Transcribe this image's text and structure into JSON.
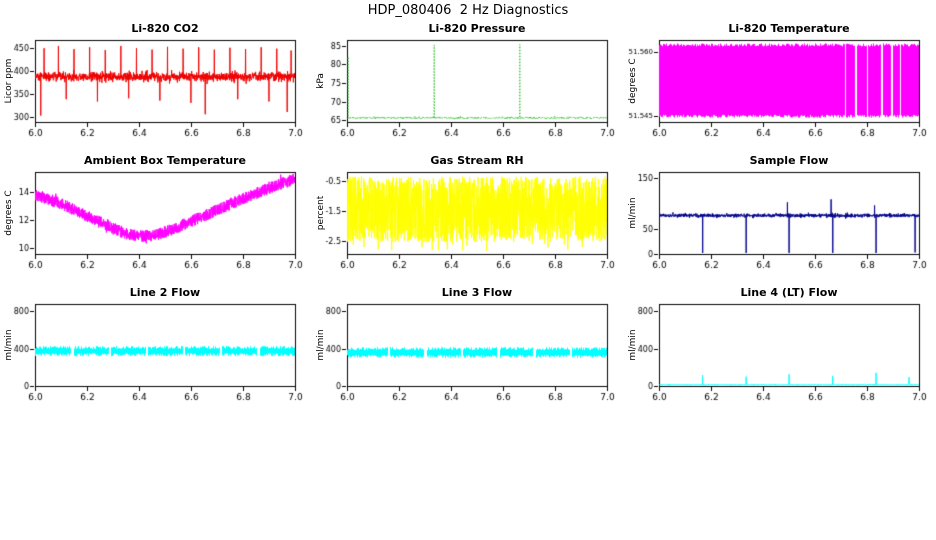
{
  "page_title": "HDP_080406  2 Hz Diagnostics",
  "chart_data": [
    {
      "type": "line",
      "title": "Li-820 CO2",
      "ylabel": "Licor ppm",
      "xlim": [
        6.0,
        7.0
      ],
      "ylim": [
        288,
        468
      ],
      "xticks": [
        "6.0",
        "6.2",
        "6.4",
        "6.6",
        "6.8",
        "7.0"
      ],
      "yticks": [
        "300",
        "350",
        "400",
        "450"
      ],
      "color": "#ee0000",
      "series": {
        "kind": "noisy_line",
        "baseline": 387,
        "noise_sd": 5,
        "n": 1400,
        "spikes": [
          [
            6.022,
            302
          ],
          [
            6.035,
            450
          ],
          [
            6.09,
            455
          ],
          [
            6.12,
            338
          ],
          [
            6.15,
            448
          ],
          [
            6.21,
            452
          ],
          [
            6.24,
            333
          ],
          [
            6.27,
            446
          ],
          [
            6.33,
            455
          ],
          [
            6.36,
            340
          ],
          [
            6.39,
            450
          ],
          [
            6.45,
            447
          ],
          [
            6.48,
            335
          ],
          [
            6.51,
            453
          ],
          [
            6.57,
            449
          ],
          [
            6.6,
            330
          ],
          [
            6.63,
            452
          ],
          [
            6.655,
            305
          ],
          [
            6.69,
            447
          ],
          [
            6.75,
            451
          ],
          [
            6.78,
            338
          ],
          [
            6.81,
            448
          ],
          [
            6.87,
            452
          ],
          [
            6.9,
            333
          ],
          [
            6.93,
            449
          ],
          [
            6.97,
            310
          ],
          [
            6.985,
            445
          ]
        ]
      }
    },
    {
      "type": "line",
      "title": "Li-820 Pressure",
      "ylabel": "kPa",
      "xlim": [
        6.0,
        7.0
      ],
      "ylim": [
        64.5,
        86.5
      ],
      "xticks": [
        "6.0",
        "6.2",
        "6.4",
        "6.6",
        "6.8",
        "7.0"
      ],
      "yticks": [
        "65",
        "70",
        "75",
        "80",
        "85"
      ],
      "color": "#00b000",
      "series": {
        "kind": "noisy_line",
        "baseline": 65.6,
        "noise_sd": 0.12,
        "n": 1200,
        "dash": [
          1,
          2
        ],
        "spikes": [
          [
            6.004,
            82
          ],
          [
            6.335,
            85.2
          ],
          [
            6.665,
            85.3
          ]
        ]
      }
    },
    {
      "type": "line",
      "title": "Li-820 Temperature",
      "ylabel": "degrees C",
      "xlim": [
        6.0,
        7.0
      ],
      "ylim": [
        51.5435,
        51.5628
      ],
      "xticks": [
        "6.0",
        "6.2",
        "6.4",
        "6.6",
        "6.8",
        "7.0"
      ],
      "yticks": [
        "51.545",
        "51.560"
      ],
      "ytick_font": 7,
      "color": "#ff00ff",
      "series": {
        "kind": "band_fill",
        "ymin": 51.5445,
        "ymax": 51.562,
        "jitter": 3,
        "gaps": [
          [
            6.712,
            6.719
          ],
          [
            6.753,
            6.758
          ],
          [
            6.797,
            6.803
          ],
          [
            6.853,
            6.858
          ],
          [
            6.892,
            6.897
          ],
          [
            6.924,
            6.928
          ]
        ]
      }
    },
    {
      "type": "line",
      "title": "Ambient Box Temperature",
      "ylabel": "degrees C",
      "xlim": [
        6.0,
        7.0
      ],
      "ylim": [
        9.6,
        15.4
      ],
      "xticks": [
        "6.0",
        "6.2",
        "6.4",
        "6.6",
        "6.8",
        "7.0"
      ],
      "yticks": [
        "10",
        "12",
        "14"
      ],
      "color": "#ff00ff",
      "series": {
        "kind": "curve_band",
        "half_width": 0.42,
        "n": 1600,
        "points": [
          [
            6.0,
            13.8
          ],
          [
            6.05,
            13.5
          ],
          [
            6.1,
            13.15
          ],
          [
            6.15,
            12.75
          ],
          [
            6.2,
            12.3
          ],
          [
            6.25,
            11.85
          ],
          [
            6.3,
            11.4
          ],
          [
            6.35,
            11.05
          ],
          [
            6.4,
            10.85
          ],
          [
            6.45,
            10.9
          ],
          [
            6.5,
            11.15
          ],
          [
            6.55,
            11.5
          ],
          [
            6.6,
            11.9
          ],
          [
            6.65,
            12.3
          ],
          [
            6.7,
            12.7
          ],
          [
            6.75,
            13.1
          ],
          [
            6.8,
            13.5
          ],
          [
            6.85,
            13.9
          ],
          [
            6.9,
            14.25
          ],
          [
            6.95,
            14.6
          ],
          [
            7.0,
            14.9
          ]
        ]
      }
    },
    {
      "type": "line",
      "title": "Gas Stream RH",
      "ylabel": "percent",
      "xlim": [
        6.0,
        7.0
      ],
      "ylim": [
        -2.95,
        -0.2
      ],
      "xticks": [
        "6.0",
        "6.2",
        "6.4",
        "6.6",
        "6.8",
        "7.0"
      ],
      "yticks": [
        "-2.5",
        "-1.5",
        "-0.5"
      ],
      "color": "#ffff00",
      "series": {
        "kind": "uniform_noise",
        "ymin": -2.55,
        "ymax": -0.35,
        "n": 1600,
        "outlier_p": 0.012,
        "outlier_extra": 0.3
      }
    },
    {
      "type": "line",
      "title": "Sample Flow",
      "ylabel": "ml/min",
      "xlim": [
        6.0,
        7.0
      ],
      "ylim": [
        0,
        162
      ],
      "xticks": [
        "6.0",
        "6.2",
        "6.4",
        "6.6",
        "6.8",
        "7.0"
      ],
      "yticks": [
        "0",
        "50",
        "150"
      ],
      "color": "#00008b",
      "series": {
        "kind": "noisy_line",
        "baseline": 76,
        "noise_sd": 1.8,
        "n": 1400,
        "spikes": [
          [
            6.168,
            2
          ],
          [
            6.335,
            2
          ],
          [
            6.494,
            102
          ],
          [
            6.5,
            2
          ],
          [
            6.662,
            108
          ],
          [
            6.668,
            2
          ],
          [
            6.829,
            96
          ],
          [
            6.835,
            2
          ],
          [
            6.985,
            3
          ]
        ]
      }
    },
    {
      "type": "line",
      "title": "Line 2 Flow",
      "ylabel": "ml/min",
      "xlim": [
        6.0,
        7.0
      ],
      "ylim": [
        0,
        880
      ],
      "xticks": [
        "6.0",
        "6.2",
        "6.4",
        "6.6",
        "6.8",
        "7.0"
      ],
      "yticks": [
        "0",
        "400",
        "800"
      ],
      "color": "#00ffff",
      "series": {
        "kind": "band_fill",
        "ymin": 320,
        "ymax": 430,
        "jitter": 3,
        "gaps": [
          [
            6.138,
            6.148
          ],
          [
            6.281,
            6.291
          ],
          [
            6.424,
            6.434
          ],
          [
            6.566,
            6.576
          ],
          [
            6.709,
            6.719
          ],
          [
            6.852,
            6.862
          ]
        ]
      }
    },
    {
      "type": "line",
      "title": "Line 3 Flow",
      "ylabel": "ml/min",
      "xlim": [
        6.0,
        7.0
      ],
      "ylim": [
        0,
        880
      ],
      "xticks": [
        "6.0",
        "6.2",
        "6.4",
        "6.6",
        "6.8",
        "7.0"
      ],
      "yticks": [
        "0",
        "400",
        "800"
      ],
      "color": "#00ffff",
      "series": {
        "kind": "band_fill",
        "ymin": 302,
        "ymax": 418,
        "jitter": 3,
        "gaps": [
          [
            6.155,
            6.165
          ],
          [
            6.295,
            6.305
          ],
          [
            6.435,
            6.445
          ],
          [
            6.575,
            6.585
          ],
          [
            6.715,
            6.725
          ],
          [
            6.855,
            6.865
          ]
        ]
      }
    },
    {
      "type": "line",
      "title": "Line 4 (LT) Flow",
      "ylabel": "ml/min",
      "xlim": [
        6.0,
        7.0
      ],
      "ylim": [
        0,
        880
      ],
      "xticks": [
        "6.0",
        "6.2",
        "6.4",
        "6.6",
        "6.8",
        "7.0"
      ],
      "yticks": [
        "0",
        "400",
        "800"
      ],
      "color": "#00ffff",
      "series": {
        "kind": "noisy_line",
        "baseline": 14,
        "noise_sd": 2,
        "n": 1200,
        "spikes": [
          [
            6.168,
            118
          ],
          [
            6.335,
            100
          ],
          [
            6.5,
            126
          ],
          [
            6.668,
            108
          ],
          [
            6.835,
            142
          ],
          [
            6.962,
            95
          ]
        ]
      }
    }
  ]
}
